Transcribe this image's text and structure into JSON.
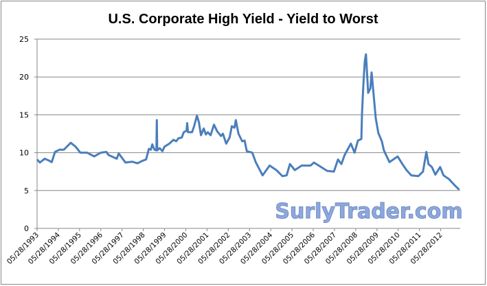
{
  "chart_data": {
    "type": "line",
    "title": "U.S. Corporate High Yield - Yield to Worst",
    "xlabel": "",
    "ylabel": "",
    "ylim": [
      0,
      25
    ],
    "yticks": [
      0,
      5,
      10,
      15,
      20,
      25
    ],
    "xlim": [
      "1993-05-28",
      "2013-04-28"
    ],
    "xtick_labels": [
      "05/28/1993",
      "05/28/1994",
      "05/28/1995",
      "05/28/1996",
      "05/28/1997",
      "05/28/1998",
      "05/28/1999",
      "05/28/2000",
      "05/28/2001",
      "05/28/2002",
      "05/28/2003",
      "05/28/2004",
      "05/28/2005",
      "05/28/2006",
      "05/28/2007",
      "05/28/2008",
      "05/28/2009",
      "05/28/2010",
      "05/28/2011",
      "05/28/2012"
    ],
    "grid": true,
    "legend": "none",
    "line_color": "#4a7ebb",
    "watermark": "SurlyTrader.com",
    "series": [
      {
        "x": [
          "1993-05-28",
          "1993-07-15",
          "1993-10-05",
          "1993-12-05",
          "1994-02-03",
          "1994-04-01",
          "1994-06-20",
          "1994-09-01",
          "1994-12-28",
          "1995-03-20",
          "1995-06-10",
          "1995-10-05",
          "1996-02-03",
          "1996-05-28",
          "1996-09-01",
          "1996-10-05",
          "1997-02-25",
          "1997-04-01",
          "1997-07-25",
          "1997-11-20",
          "1998-02-15",
          "1998-05-08",
          "1998-07-15",
          "1998-09-01",
          "1998-10-05",
          "1998-10-30",
          "1998-12-05",
          "1999-01-08",
          "1999-01-15",
          "1999-01-22",
          "1999-03-05",
          "1999-04-22",
          "1999-05-28",
          "1999-08-20",
          "1999-10-30",
          "1999-12-15",
          "2000-01-22",
          "2000-03-20",
          "2000-04-22",
          "2000-06-10",
          "2000-06-20",
          "2000-07-05",
          "2000-09-12",
          "2000-10-18",
          "2000-12-05",
          "2001-01-08",
          "2001-02-13",
          "2001-04-01",
          "2001-05-08",
          "2001-06-10",
          "2001-07-28",
          "2001-09-24",
          "2001-11-20",
          "2002-01-22",
          "2002-02-25",
          "2002-04-22",
          "2002-06-20",
          "2002-07-28",
          "2002-09-12",
          "2002-10-05",
          "2002-11-20",
          "2003-01-22",
          "2003-03-05",
          "2003-04-12",
          "2003-07-15",
          "2003-09-12",
          "2004-01-08",
          "2004-05-08",
          "2004-09-01",
          "2004-12-15",
          "2005-02-25",
          "2005-04-22",
          "2005-07-15",
          "2005-11-10",
          "2006-04-12",
          "2006-06-10",
          "2007-01-22",
          "2007-05-18",
          "2007-07-28",
          "2007-09-24",
          "2007-11-20",
          "2008-03-05",
          "2008-05-08",
          "2008-07-05",
          "2008-09-01",
          "2008-09-12",
          "2008-10-05",
          "2008-10-30",
          "2008-11-20",
          "2008-12-28",
          "2009-02-03",
          "2009-02-25",
          "2009-04-01",
          "2009-05-08",
          "2009-06-20",
          "2009-08-20",
          "2009-09-24",
          "2009-12-28",
          "2010-05-18",
          "2010-08-08",
          "2010-10-18",
          "2011-01-08",
          "2011-05-08",
          "2011-07-28",
          "2011-09-24",
          "2011-10-30",
          "2011-12-28",
          "2012-02-25",
          "2012-05-18",
          "2012-07-15",
          "2012-10-18",
          "2013-01-22",
          "2013-04-12"
        ],
        "y": [
          9.1,
          8.7,
          9.2,
          9.0,
          8.75,
          10.1,
          10.4,
          10.4,
          11.3,
          10.8,
          10.0,
          10.0,
          9.5,
          10.0,
          10.1,
          9.7,
          9.2,
          9.9,
          8.7,
          8.8,
          8.6,
          8.9,
          9.1,
          10.5,
          10.4,
          11.1,
          10.4,
          10.3,
          14.3,
          10.3,
          10.6,
          10.2,
          10.8,
          11.2,
          11.7,
          11.5,
          11.9,
          12.0,
          12.7,
          12.9,
          13.9,
          12.7,
          12.7,
          13.5,
          14.9,
          14.0,
          12.3,
          13.2,
          12.4,
          12.7,
          12.3,
          13.7,
          12.8,
          12.2,
          12.5,
          11.2,
          12.0,
          13.5,
          13.3,
          14.3,
          12.5,
          11.5,
          11.6,
          10.2,
          10.0,
          8.75,
          7.0,
          8.3,
          7.7,
          6.9,
          7.0,
          8.5,
          7.7,
          8.3,
          8.3,
          8.7,
          7.6,
          7.5,
          9.1,
          8.5,
          9.7,
          11.2,
          10.0,
          11.6,
          11.8,
          15.1,
          18.8,
          22.1,
          23.0,
          17.9,
          18.5,
          20.6,
          17.6,
          14.5,
          12.6,
          11.5,
          10.3,
          8.75,
          9.5,
          8.5,
          7.7,
          7.0,
          6.9,
          7.5,
          10.1,
          8.5,
          8.1,
          7.1,
          8.1,
          7.0,
          6.5,
          5.7,
          5.1
        ]
      }
    ]
  }
}
